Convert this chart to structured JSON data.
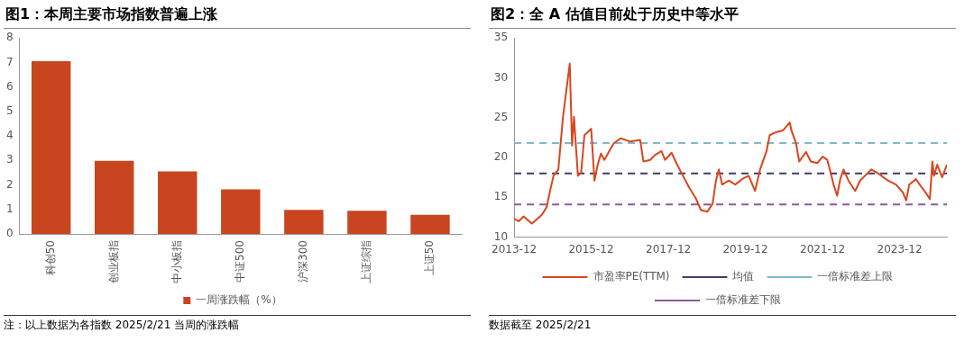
{
  "chart_data": [
    {
      "type": "bar",
      "title": "图1：本周主要市场指数普遍上涨",
      "categories": [
        "科创50",
        "创业板指",
        "中小板指",
        "中证500",
        "沪深300",
        "上证综指",
        "上证50"
      ],
      "series": [
        {
          "name": "一周涨跌幅（%）",
          "color": "#c8451f",
          "values": [
            7.05,
            2.98,
            2.55,
            1.82,
            0.98,
            0.95,
            0.78
          ]
        }
      ],
      "ylim": [
        0,
        8
      ],
      "yticks": [
        0,
        1,
        2,
        3,
        4,
        5,
        6,
        7,
        8
      ],
      "grid": false,
      "legend": "bottom",
      "annotations": [
        "注：以上数据为各指数 2025/2/21 当周的涨跌幅"
      ]
    },
    {
      "type": "line",
      "title": "图2：全 A 估值目前处于历史中等水平",
      "series": [
        {
          "name": "市盈率PE(TTM)",
          "color": "#d9461f",
          "x": [
            "2013-12-01",
            "2014-01-15",
            "2014-03-01",
            "2014-05-18",
            "2014-08-21",
            "2014-10-06",
            "2014-11-06",
            "2014-12-09",
            "2015-01-24",
            "2015-03-09",
            "2015-05-12",
            "2015-06-03",
            "2015-06-21",
            "2015-07-28",
            "2015-08-28",
            "2015-09-28",
            "2015-12-01",
            "2016-01-01",
            "2016-02-01",
            "2016-03-03",
            "2016-04-03",
            "2016-07-03",
            "2016-09-06",
            "2016-12-06",
            "2017-03-09",
            "2017-04-09",
            "2017-06-12",
            "2017-07-27",
            "2017-09-27",
            "2017-10-30",
            "2018-01-01",
            "2018-02-15",
            "2018-04-18",
            "2018-06-18",
            "2018-08-21",
            "2018-10-06",
            "2018-12-06",
            "2019-01-24",
            "2019-02-24",
            "2019-03-24",
            "2019-04-24",
            "2019-06-27",
            "2019-08-27",
            "2019-11-01",
            "2020-01-01",
            "2020-03-01",
            "2020-04-18",
            "2020-06-18",
            "2020-07-18",
            "2020-09-21",
            "2020-11-21",
            "2021-01-24",
            "2021-02-09",
            "2021-03-24",
            "2021-04-24",
            "2021-06-27",
            "2021-08-12",
            "2021-10-12",
            "2021-12-01",
            "2022-01-15",
            "2022-02-15",
            "2022-03-15",
            "2022-04-18",
            "2022-05-18",
            "2022-06-18",
            "2022-08-03",
            "2022-10-06",
            "2022-11-21",
            "2023-01-06",
            "2023-03-09",
            "2023-05-24",
            "2023-08-12",
            "2023-10-27",
            "2024-01-01",
            "2024-02-01",
            "2024-03-01",
            "2024-05-03",
            "2024-06-18",
            "2024-08-03",
            "2024-09-12",
            "2024-10-06",
            "2024-10-21",
            "2024-11-21",
            "2025-01-06",
            "2025-02-21"
          ],
          "values": [
            12.3,
            12.0,
            12.6,
            11.7,
            12.8,
            13.8,
            15.8,
            17.7,
            18.5,
            25.1,
            31.8,
            21.5,
            25.1,
            17.7,
            18.1,
            22.8,
            23.6,
            17.1,
            19.1,
            20.5,
            19.7,
            21.8,
            22.4,
            22.0,
            22.2,
            19.5,
            19.7,
            20.3,
            20.8,
            19.7,
            20.6,
            19.3,
            17.7,
            16.2,
            14.8,
            13.4,
            13.2,
            14.2,
            17.0,
            18.5,
            16.6,
            17.1,
            16.6,
            17.3,
            17.7,
            15.8,
            18.5,
            20.8,
            22.8,
            23.2,
            23.4,
            24.4,
            23.4,
            21.8,
            19.5,
            20.7,
            19.5,
            19.3,
            20.1,
            19.7,
            18.1,
            16.6,
            15.2,
            17.3,
            18.5,
            17.1,
            15.8,
            17.1,
            17.7,
            18.5,
            17.9,
            17.1,
            16.6,
            15.6,
            14.6,
            16.6,
            17.3,
            16.4,
            15.6,
            14.8,
            19.5,
            17.7,
            19.1,
            17.5,
            19.1
          ]
        }
      ],
      "ref_lines": [
        {
          "axis": "y",
          "value": 18.0,
          "label": "均值",
          "color": "#3f3d6b",
          "line_style": "dashed"
        },
        {
          "axis": "y",
          "value": 21.8,
          "label": "一倍标准差上限",
          "color": "#7fb8cf",
          "line_style": "dashed"
        },
        {
          "axis": "y",
          "value": 14.1,
          "label": "一倍标准差下限",
          "color": "#8e5a9b",
          "line_style": "dashed"
        }
      ],
      "xlim": [
        "2013-12-01",
        "2025-02-21"
      ],
      "xticks": [
        "2013-12",
        "2015-12",
        "2017-12",
        "2019-12",
        "2021-12",
        "2023-12"
      ],
      "ylim": [
        10,
        35
      ],
      "yticks": [
        10,
        15,
        20,
        25,
        30,
        35
      ],
      "grid": false,
      "legend": "bottom",
      "line_style": "solid",
      "marker": "none",
      "annotations": [
        "数据截至 2025/2/21"
      ]
    }
  ]
}
